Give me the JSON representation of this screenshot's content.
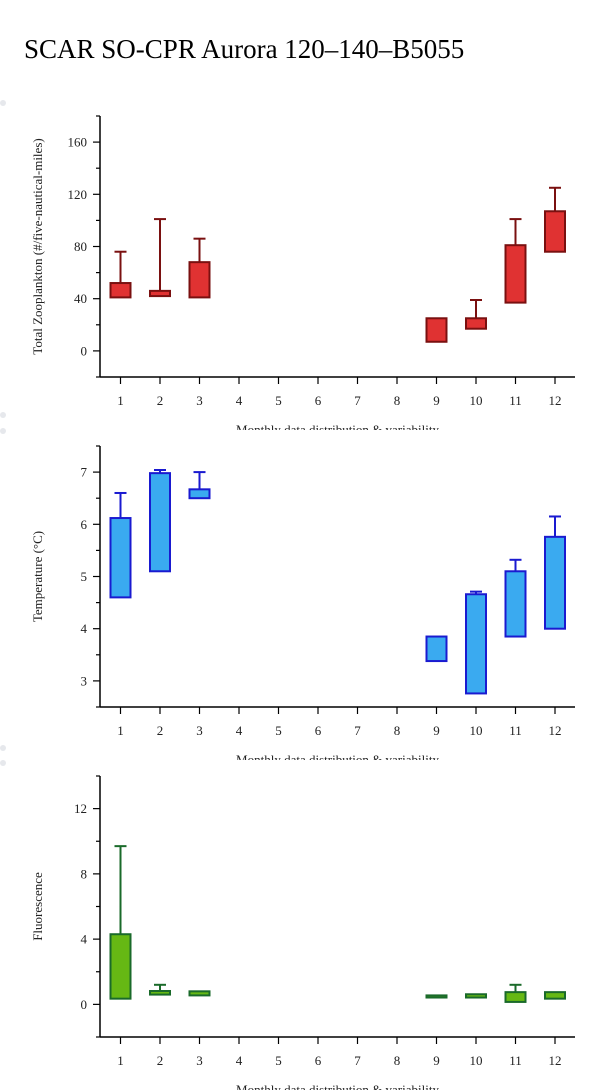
{
  "page": {
    "title": "SCAR SO-CPR Aurora 120–140–B5055"
  },
  "chart_data": [
    {
      "type": "box",
      "ylabel": "Total Zooplankton (#/five-nautical-miles)",
      "xlabel": "Monthly data distribution & variability",
      "categories": [
        "1",
        "2",
        "3",
        "4",
        "5",
        "6",
        "7",
        "8",
        "9",
        "10",
        "11",
        "12"
      ],
      "yticks": [
        0,
        40,
        80,
        120,
        160
      ],
      "ylim": [
        -20,
        180
      ],
      "colors": {
        "fill": "#e03232",
        "stroke": "#7a1010"
      },
      "boxes": [
        {
          "month": "1",
          "q1": 41,
          "q3": 52,
          "whisker_high": 76
        },
        {
          "month": "2",
          "q1": 42,
          "q3": 46,
          "whisker_high": 101
        },
        {
          "month": "3",
          "q1": 41,
          "q3": 68,
          "whisker_high": 86
        },
        {
          "month": "9",
          "q1": 7,
          "q3": 25
        },
        {
          "month": "10",
          "q1": 17,
          "q3": 25,
          "whisker_high": 39
        },
        {
          "month": "11",
          "q1": 37,
          "q3": 81,
          "whisker_high": 101
        },
        {
          "month": "12",
          "q1": 76,
          "q3": 107,
          "whisker_high": 125
        }
      ]
    },
    {
      "type": "box",
      "ylabel": "Temperature (°C)",
      "xlabel": "Monthly data distribution & variability",
      "categories": [
        "1",
        "2",
        "3",
        "4",
        "5",
        "6",
        "7",
        "8",
        "9",
        "10",
        "11",
        "12"
      ],
      "yticks": [
        3,
        4,
        5,
        6,
        7
      ],
      "ylim": [
        2.5,
        7.5
      ],
      "colors": {
        "fill": "#3aaaf0",
        "stroke": "#1a1ad0"
      },
      "boxes": [
        {
          "month": "1",
          "q1": 4.6,
          "q3": 6.12,
          "whisker_high": 6.6
        },
        {
          "month": "2",
          "q1": 5.1,
          "q3": 6.98,
          "whisker_high": 7.04
        },
        {
          "month": "3",
          "q1": 6.5,
          "q3": 6.67,
          "whisker_high": 7.0
        },
        {
          "month": "9",
          "q1": 3.38,
          "q3": 3.85
        },
        {
          "month": "10",
          "q1": 2.76,
          "q3": 4.66,
          "whisker_high": 4.71
        },
        {
          "month": "11",
          "q1": 3.85,
          "q3": 5.1,
          "whisker_high": 5.32
        },
        {
          "month": "12",
          "q1": 4.0,
          "q3": 5.76,
          "whisker_high": 6.15
        }
      ]
    },
    {
      "type": "box",
      "ylabel": "Fluorescence",
      "xlabel": "Monthly data distribution & variability",
      "categories": [
        "1",
        "2",
        "3",
        "4",
        "5",
        "6",
        "7",
        "8",
        "9",
        "10",
        "11",
        "12"
      ],
      "yticks": [
        0,
        4,
        8,
        12
      ],
      "ylim": [
        -2,
        14
      ],
      "colors": {
        "fill": "#66b814",
        "stroke": "#1a6a2a"
      },
      "boxes": [
        {
          "month": "1",
          "q1": 0.35,
          "q3": 4.3,
          "whisker_high": 9.7
        },
        {
          "month": "2",
          "q1": 0.6,
          "q3": 0.82,
          "whisker_high": 1.2
        },
        {
          "month": "3",
          "q1": 0.55,
          "q3": 0.8
        },
        {
          "month": "9",
          "q1": 0.42,
          "q3": 0.55
        },
        {
          "month": "10",
          "q1": 0.42,
          "q3": 0.62
        },
        {
          "month": "11",
          "q1": 0.15,
          "q3": 0.75,
          "whisker_high": 1.2
        },
        {
          "month": "12",
          "q1": 0.35,
          "q3": 0.75
        }
      ]
    }
  ]
}
